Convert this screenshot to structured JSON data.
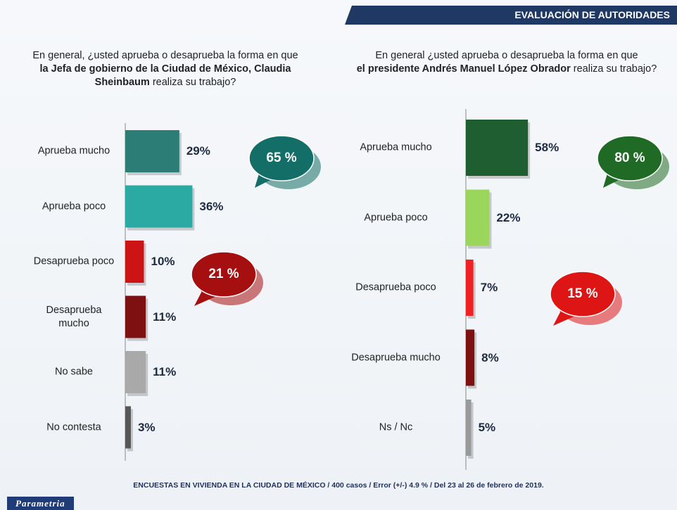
{
  "header": "EVALUACIÓN DE AUTORIDADES",
  "footer": "ENCUESTAS EN VIVIENDA EN LA CIUDAD DE MÉXICO / 400 casos / Error (+/-) 4.9 % / Del 23 al 26 de febrero de 2019.",
  "brand": "Parametria",
  "chart_data": [
    {
      "type": "bar",
      "orientation": "horizontal",
      "title": [
        "En general, ¿usted aprueba o desaprueba la forma en que",
        "la Jefa de gobierno de la Ciudad de México, Claudia Sheinbaum",
        "realiza su trabajo?"
      ],
      "categories": [
        "Aprueba mucho",
        "Aprueba poco",
        "Desaprueba poco",
        "Desaprueba mucho",
        "No sabe",
        "No contesta"
      ],
      "values": [
        29,
        36,
        10,
        11,
        11,
        3
      ],
      "value_labels": [
        "29%",
        "36%",
        "10%",
        "11%",
        "11%",
        "3%"
      ],
      "colors": [
        "#2b7d75",
        "#2aaaa2",
        "#cc1414",
        "#7d1010",
        "#a9a9a9",
        "#575757"
      ],
      "callouts": [
        {
          "value": 65,
          "label": "65 %",
          "color": "#126e66"
        },
        {
          "value": 21,
          "label": "21 %",
          "color": "#a50f0f"
        }
      ]
    },
    {
      "type": "bar",
      "orientation": "horizontal",
      "title": [
        "En general ¿usted aprueba o desaprueba la forma en que",
        "el presidente Andrés Manuel López Obrador",
        "realiza su trabajo?"
      ],
      "categories": [
        "Aprueba mucho",
        "Aprueba poco",
        "Desaprueba poco",
        "Desaprueba mucho",
        "Ns / Nc"
      ],
      "values": [
        58,
        22,
        7,
        8,
        5
      ],
      "value_labels": [
        "58%",
        "22%",
        "7%",
        "8%",
        "5%"
      ],
      "colors": [
        "#1e5e31",
        "#9bd65c",
        "#ee2222",
        "#7d1010",
        "#9a9a9a"
      ],
      "callouts": [
        {
          "value": 80,
          "label": "80 %",
          "color": "#1f6b25"
        },
        {
          "value": 15,
          "label": "15 %",
          "color": "#dd1515"
        }
      ]
    }
  ]
}
